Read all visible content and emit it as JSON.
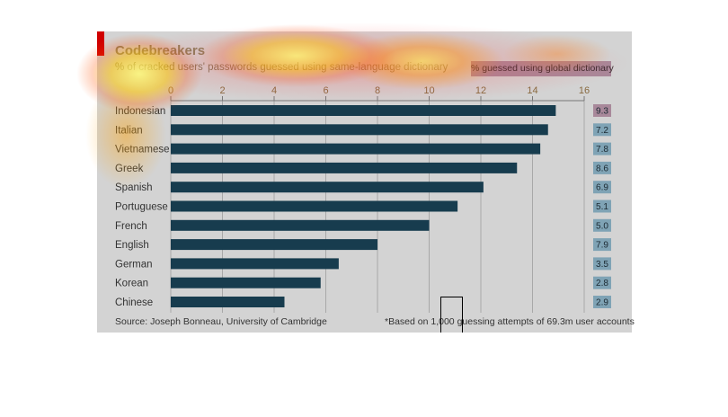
{
  "header": {
    "title": "Codebreakers",
    "subtitle": "% of cracked users' passwords guessed using same-language dictionary",
    "legend_label": "% guessed using global dictionary"
  },
  "footer": {
    "source": "Source: Joseph Bonneau, University of Cambridge",
    "footnote": "*Based on 1,000 guessing attempts of 69.3m user accounts"
  },
  "colors": {
    "bar": "#173c4e",
    "panel": "#d3d3d3",
    "accent": "#d00000",
    "value_box": "#7fa3b5",
    "value_box_top": "#a8889a"
  },
  "chart_data": {
    "type": "bar",
    "orientation": "horizontal",
    "categories": [
      "Indonesian",
      "Italian",
      "Vietnamese",
      "Greek",
      "Spanish",
      "Portuguese",
      "French",
      "English",
      "German",
      "Korean",
      "Chinese"
    ],
    "series": [
      {
        "name": "% guessed using same-language dictionary",
        "values": [
          14.9,
          14.6,
          14.3,
          13.4,
          12.1,
          11.1,
          10.0,
          8.0,
          6.5,
          5.8,
          4.4
        ]
      },
      {
        "name": "% guessed using global dictionary",
        "values": [
          9.3,
          7.2,
          7.8,
          8.6,
          6.9,
          5.1,
          5.0,
          7.9,
          3.5,
          2.8,
          2.9
        ]
      }
    ],
    "xticks": [
      0,
      2,
      4,
      6,
      8,
      10,
      12,
      14,
      16
    ],
    "xlim": [
      0,
      16
    ],
    "grid": true,
    "axis_position": "top",
    "title": "Codebreakers",
    "subtitle": "% of cracked users' passwords guessed using same-language dictionary"
  }
}
